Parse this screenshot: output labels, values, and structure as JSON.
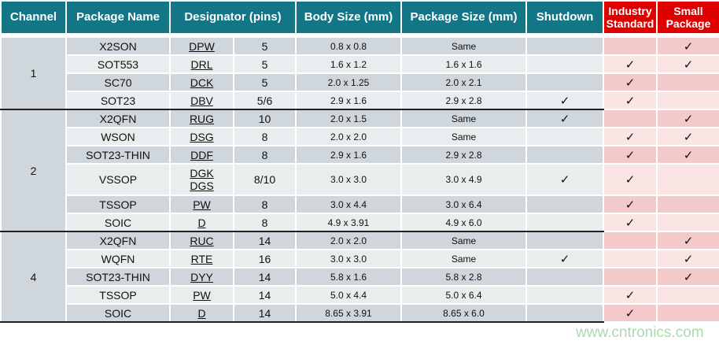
{
  "headers": [
    "Channel",
    "Package Name",
    "Designator (pins)",
    "Body Size (mm)",
    "Package Size (mm)",
    "Shutdown",
    "Industry Standard",
    "Small Package"
  ],
  "check_glyph": "✓",
  "colors": {
    "header": "#137686",
    "highlight_header": "#e00000"
  },
  "groups": [
    {
      "channel": "1",
      "rows": [
        {
          "name": "X2SON",
          "designator": [
            "DPW"
          ],
          "pins": "5",
          "body": "0.8 x 0.8",
          "package": "Same",
          "shutdown": false,
          "industry": false,
          "small": true
        },
        {
          "name": "SOT553",
          "designator": [
            "DRL"
          ],
          "pins": "5",
          "body": "1.6 x 1.2",
          "package": "1.6 x 1.6",
          "shutdown": false,
          "industry": true,
          "small": true
        },
        {
          "name": "SC70",
          "designator": [
            "DCK"
          ],
          "pins": "5",
          "body": "2.0 x 1.25",
          "package": "2.0 x 2.1",
          "shutdown": false,
          "industry": true,
          "small": false
        },
        {
          "name": "SOT23",
          "designator": [
            "DBV"
          ],
          "pins": "5/6",
          "body": "2.9 x 1.6",
          "package": "2.9 x 2.8",
          "shutdown": true,
          "industry": true,
          "small": false
        }
      ]
    },
    {
      "channel": "2",
      "rows": [
        {
          "name": "X2QFN",
          "designator": [
            "RUG"
          ],
          "pins": "10",
          "body": "2.0 x 1.5",
          "package": "Same",
          "shutdown": true,
          "industry": false,
          "small": true
        },
        {
          "name": "WSON",
          "designator": [
            "DSG"
          ],
          "pins": "8",
          "body": "2.0 x 2.0",
          "package": "Same",
          "shutdown": false,
          "industry": true,
          "small": true
        },
        {
          "name": "SOT23-THIN",
          "designator": [
            "DDF"
          ],
          "pins": "8",
          "body": "2.9 x 1.6",
          "package": "2.9 x 2.8",
          "shutdown": false,
          "industry": true,
          "small": true
        },
        {
          "name": "VSSOP",
          "designator": [
            "DGK",
            "DGS"
          ],
          "pins": "8/10",
          "body": "3.0 x 3.0",
          "package": "3.0 x 4.9",
          "shutdown": true,
          "industry": true,
          "small": false
        },
        {
          "name": "TSSOP",
          "designator": [
            "PW"
          ],
          "pins": "8",
          "body": "3.0 x 4.4",
          "package": "3.0 x 6.4",
          "shutdown": false,
          "industry": true,
          "small": false
        },
        {
          "name": "SOIC",
          "designator": [
            "D"
          ],
          "pins": "8",
          "body": "4.9 x 3.91",
          "package": "4.9 x 6.0",
          "shutdown": false,
          "industry": true,
          "small": false
        }
      ]
    },
    {
      "channel": "4",
      "rows": [
        {
          "name": "X2QFN",
          "designator": [
            "RUC"
          ],
          "pins": "14",
          "body": "2.0 x 2.0",
          "package": "Same",
          "shutdown": false,
          "industry": false,
          "small": true
        },
        {
          "name": "WQFN",
          "designator": [
            "RTE"
          ],
          "pins": "16",
          "body": "3.0 x 3.0",
          "package": "Same",
          "shutdown": true,
          "industry": false,
          "small": true
        },
        {
          "name": "SOT23-THIN",
          "designator": [
            "DYY"
          ],
          "pins": "14",
          "body": "5.8 x 1.6",
          "package": "5.8 x 2.8",
          "shutdown": false,
          "industry": false,
          "small": true
        },
        {
          "name": "TSSOP",
          "designator": [
            "PW"
          ],
          "pins": "14",
          "body": "5.0 x 4.4",
          "package": "5.0 x 6.4",
          "shutdown": false,
          "industry": true,
          "small": false
        },
        {
          "name": "SOIC",
          "designator": [
            "D"
          ],
          "pins": "14",
          "body": "8.65 x 3.91",
          "package": "8.65 x 6.0",
          "shutdown": false,
          "industry": true,
          "small": false
        }
      ]
    }
  ],
  "watermark": "www.cntronics.com"
}
